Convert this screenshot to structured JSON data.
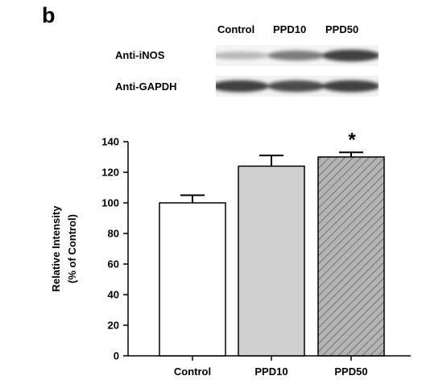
{
  "panel_label": "b",
  "blot": {
    "lanes": [
      "Control",
      "PPD10",
      "PPD50"
    ],
    "rows": [
      {
        "label": "Anti-iNOS",
        "band_intensity": [
          0.25,
          0.55,
          0.85
        ]
      },
      {
        "label": "Anti-GAPDH",
        "band_intensity": [
          0.85,
          0.8,
          0.85
        ]
      }
    ]
  },
  "chart_data": {
    "type": "bar",
    "categories": [
      "Control",
      "PPD10",
      "PPD50"
    ],
    "values": [
      100,
      124,
      130
    ],
    "errors": [
      5,
      7,
      3
    ],
    "significance": [
      "",
      "",
      "*"
    ],
    "fills": [
      "#ffffff",
      "#d0d0d0",
      "hatch"
    ],
    "ylabel_line1": "Relative Intensity",
    "ylabel_line2": "(% of Control)",
    "ylim": [
      0,
      140
    ],
    "yticks": [
      0,
      20,
      40,
      60,
      80,
      100,
      120,
      140
    ],
    "grid": false
  }
}
